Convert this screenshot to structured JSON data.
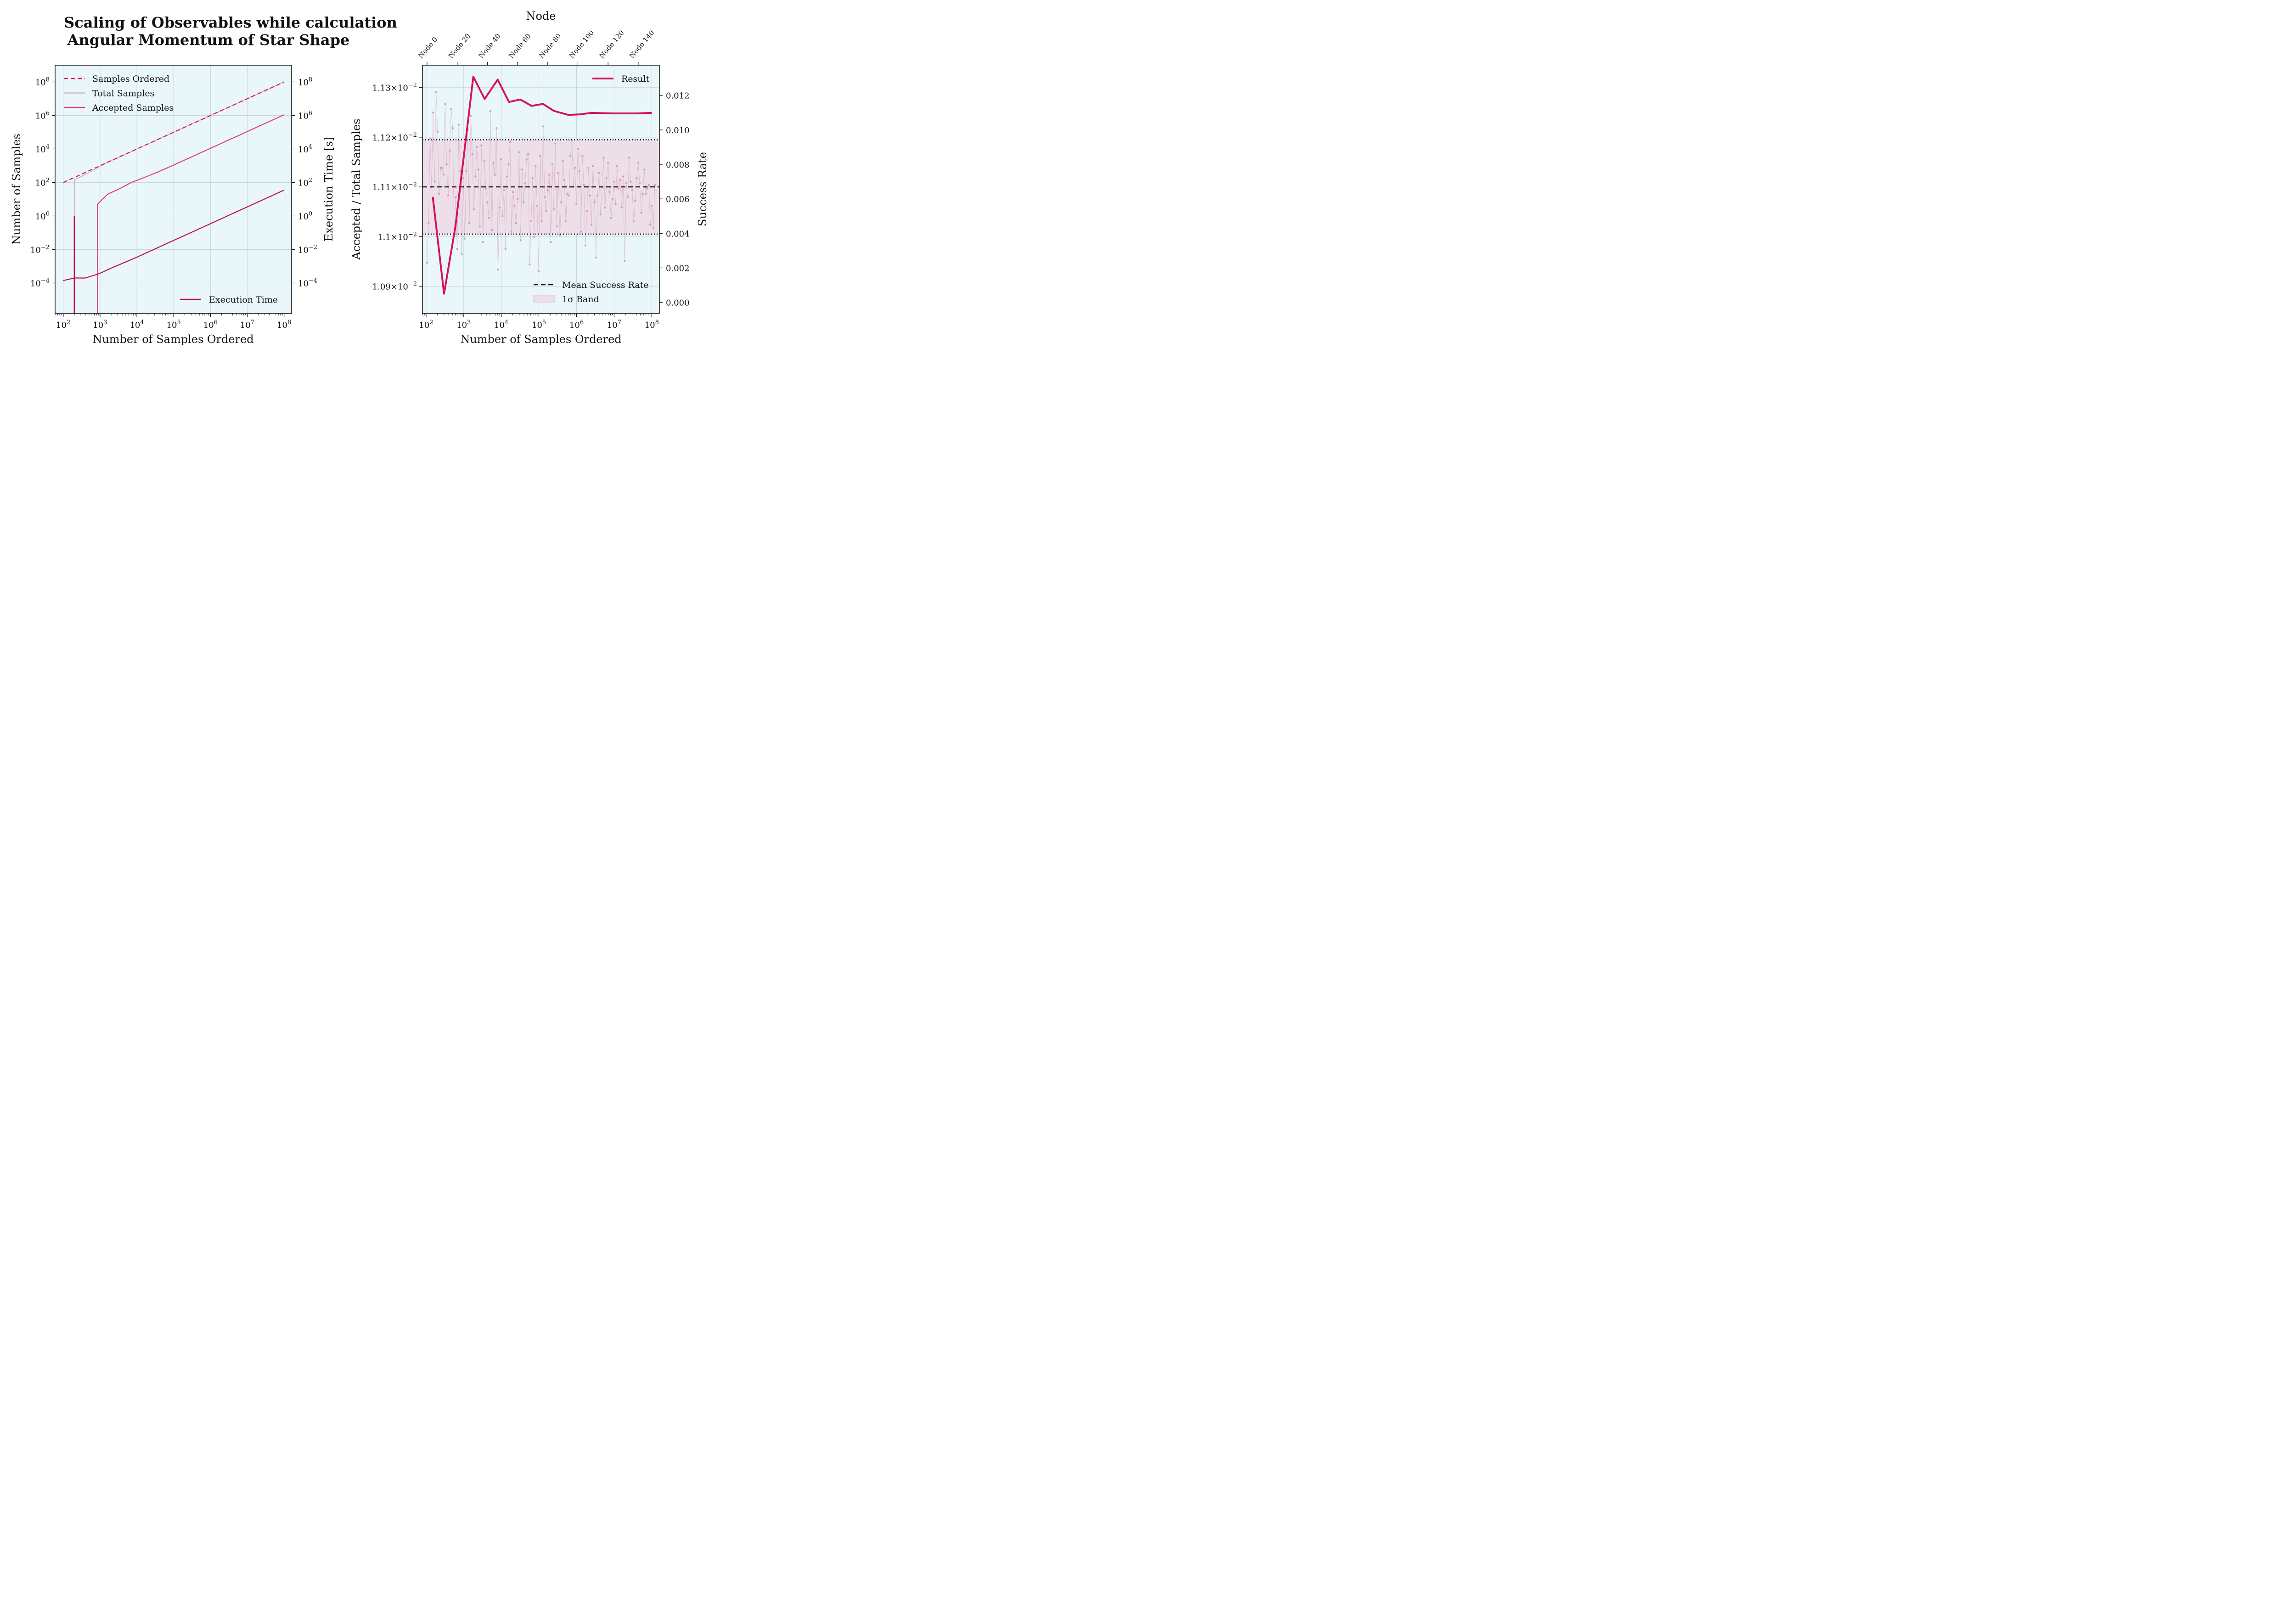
{
  "title_line1": "Scaling of Observables while calculation",
  "title_line2": "Angular Momentum of Star Shape",
  "colors": {
    "plot_bg": "#e9f6fa",
    "samples_ordered": "#e0115f",
    "total_samples": "#d4b5d8",
    "accepted_samples": "#e23e8f",
    "execution_time": "#c0114e",
    "result": "#d31261",
    "scatter": "#d68fb8",
    "band": "#ecdfe8"
  },
  "chart_data": [
    {
      "type": "line",
      "x_scale": "log",
      "y_scale": "log",
      "xlabel": "Number of Samples Ordered",
      "ylabel": "Number of Samples",
      "ylabel_right": "Execution Time [s]",
      "xlim": [
        60,
        160000000
      ],
      "ylim": [
        1.5e-06,
        1000000000
      ],
      "x_ticks": [
        "10^2",
        "10^3",
        "10^4",
        "10^5",
        "10^6",
        "10^7",
        "10^8"
      ],
      "y_ticks": [
        "10^-4",
        "10^-2",
        "10^0",
        "10^2",
        "10^4",
        "10^6",
        "10^8"
      ],
      "grid": true,
      "legend_top_left": [
        "Samples Ordered",
        "Total Samples",
        "Accepted Samples"
      ],
      "legend_bottom_right": [
        "Execution Time"
      ],
      "series": [
        {
          "name": "Samples Ordered",
          "style": "dashed",
          "x": [
            100,
            1000,
            10000,
            100000,
            1000000,
            10000000,
            100000000
          ],
          "y": [
            100,
            1000,
            10000,
            100000,
            1000000,
            10000000,
            100000000
          ]
        },
        {
          "name": "Total Samples",
          "style": "solid",
          "x": [
            200,
            200,
            400,
            800,
            1600,
            3200,
            10000,
            100000,
            1000000,
            10000000,
            100000000
          ],
          "y": [
            1e-06,
            150,
            300,
            700,
            1600,
            3200,
            10000,
            100000,
            1000000,
            10000000,
            100000000
          ]
        },
        {
          "name": "Accepted Samples",
          "style": "solid",
          "x": [
            850,
            850,
            1600,
            3200,
            7000,
            16000,
            35000,
            100000,
            1000000,
            10000000,
            100000000
          ],
          "y": [
            1e-06,
            5,
            20,
            40,
            100,
            200,
            400,
            1100,
            11000,
            110000,
            1100000
          ]
        },
        {
          "name": "Accepted Samples (first step)",
          "style": "solid",
          "x": [
            200,
            200
          ],
          "y": [
            1e-06,
            1
          ]
        },
        {
          "name": "Execution Time",
          "style": "solid",
          "x": [
            100,
            200,
            400,
            1000,
            1800,
            3500,
            10000,
            100000,
            1000000,
            10000000,
            100000000
          ],
          "y": [
            0.00014,
            0.0002,
            0.0002,
            0.00038,
            0.0007,
            0.0013,
            0.0035,
            0.035,
            0.35,
            3.5,
            35
          ]
        }
      ]
    },
    {
      "type": "line",
      "x_scale": "log",
      "xlabel": "Number of Samples Ordered",
      "ylabel": "Accepted / Total Samples",
      "ylabel_right": "Success Rate",
      "top_axis_label": "Node",
      "top_ticks": [
        "Node 0",
        "Node 20",
        "Node 40",
        "Node 60",
        "Node 80",
        "Node 100",
        "Node 120",
        "Node 140"
      ],
      "xlim": [
        80,
        160000000
      ],
      "ylim": [
        0.010845,
        0.011345
      ],
      "y_ticks_left": [
        0.0109,
        0.011,
        0.0111,
        0.0112,
        0.0113
      ],
      "y_tick_labels_left": [
        "1.09×10^-2",
        "1.1×10^-2",
        "1.11×10^-2",
        "1.12×10^-2",
        "1.13×10^-2"
      ],
      "ylim_right": [
        -0.00065,
        0.01375
      ],
      "y_ticks_right": [
        "0.000",
        "0.002",
        "0.004",
        "0.006",
        "0.008",
        "0.010",
        "0.012"
      ],
      "mean": 0.0111,
      "band": [
        0.011005,
        0.011195
      ],
      "grid": true,
      "legend_top_right": [
        "Result"
      ],
      "legend_bottom_right": [
        "Mean Success Rate",
        "1σ Band"
      ],
      "series": [
        {
          "name": "Result",
          "x": [
            150,
            300,
            600,
            1000,
            1800,
            3600,
            8000,
            16000,
            32000,
            64000,
            128000,
            250000,
            600000,
            1200000,
            2500000,
            10000000,
            40000000,
            100000000
          ],
          "y": [
            0.01108,
            0.010885,
            0.01102,
            0.01116,
            0.011322,
            0.011277,
            0.011316,
            0.011271,
            0.011276,
            0.011263,
            0.011267,
            0.011253,
            0.011245,
            0.011246,
            0.011249,
            0.011248,
            0.011248,
            0.011249
          ]
        }
      ],
      "node_success_rates": [
        0.0023,
        0.0046,
        0.0095,
        0.0067,
        0.011,
        0.007,
        0.0122,
        0.0099,
        0.0063,
        0.0078,
        0.0078,
        0.0074,
        0.0115,
        0.008,
        0.0062,
        0.0088,
        0.0112,
        0.0101,
        0.0039,
        0.0061,
        0.0031,
        0.0103,
        0.0076,
        0.0028,
        0.0072,
        0.0037,
        0.0076,
        0.01,
        0.0046,
        0.0108,
        0.0086,
        0.0054,
        0.0073,
        0.009,
        0.0077,
        0.0044,
        0.0091,
        0.0035,
        0.0082,
        0.0066,
        0.0058,
        0.0049,
        0.0111,
        0.0042,
        0.0081,
        0.0074,
        0.0101,
        0.0019,
        0.0055,
        0.0083,
        0.005,
        0.0065,
        0.0031,
        0.0073,
        0.008,
        0.0093,
        0.0041,
        0.0064,
        0.0056,
        0.0046,
        0.006,
        0.0087,
        0.0036,
        0.0077,
        0.0058,
        0.0069,
        0.0083,
        0.0086,
        0.0022,
        0.0047,
        0.0072,
        0.0038,
        0.0079,
        0.0056,
        0.0018,
        0.0085,
        0.0047,
        0.0102,
        0.0061,
        0.0053,
        0.0065,
        0.0074,
        0.0035,
        0.008,
        0.0054,
        0.0092,
        0.0044,
        0.0075,
        0.0039,
        0.0058,
        0.0082,
        0.0071,
        0.0047,
        0.0063,
        0.0062,
        0.0085,
        0.0094,
        0.0067,
        0.0078,
        0.0057,
        0.0089,
        0.0076,
        0.0041,
        0.0085,
        0.0068,
        0.0033,
        0.0053,
        0.0078,
        0.0062,
        0.0045,
        0.0079,
        0.0058,
        0.0026,
        0.0062,
        0.0075,
        0.0051,
        0.0067,
        0.0084,
        0.0055,
        0.0072,
        0.0081,
        0.0064,
        0.0049,
        0.006,
        0.007,
        0.0057,
        0.0079,
        0.0066,
        0.0071,
        0.0055,
        0.0073,
        0.0024,
        0.0069,
        0.0061,
        0.0084,
        0.007,
        0.0065,
        0.0047,
        0.0059,
        0.0072,
        0.0081,
        0.0069,
        0.0052,
        0.0063,
        0.0077,
        0.0063,
        0.0066,
        0.0068,
        0.0045,
        0.0056,
        0.0043,
        0.0068
      ]
    }
  ]
}
